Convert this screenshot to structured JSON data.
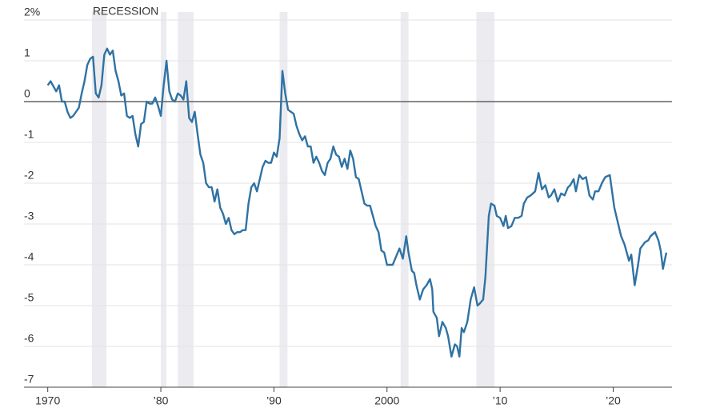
{
  "chart_data": {
    "type": "line",
    "recession_label": "RECESSION",
    "recessions": [
      [
        1973.9,
        1975.2
      ],
      [
        1980.0,
        1980.5
      ],
      [
        1981.5,
        1982.9
      ],
      [
        1990.5,
        1991.2
      ],
      [
        2001.2,
        2001.9
      ],
      [
        2007.9,
        2009.5
      ]
    ],
    "recession_color": "#ececf0",
    "xlim": [
      1967.9,
      2025.2
    ],
    "xticks": [
      {
        "value": 1970,
        "label": "1970"
      },
      {
        "value": 1980,
        "label": "’80"
      },
      {
        "value": 1990,
        "label": "’90"
      },
      {
        "value": 2000,
        "label": "2000"
      },
      {
        "value": 2010,
        "label": "’10"
      },
      {
        "value": 2020,
        "label": "’20"
      }
    ],
    "ylim": [
      -7,
      2
    ],
    "yticks": [
      {
        "value": 2,
        "label": "2%"
      },
      1,
      0,
      -1,
      -2,
      -3,
      -4,
      -5,
      -6,
      -7
    ],
    "grid": true,
    "series": [
      {
        "color": "#2f72a3",
        "x": [
          1970,
          1970.25,
          1970.75,
          1971,
          1971.25,
          1971.5,
          1971.75,
          1972,
          1972.25,
          1972.5,
          1972.75,
          1973,
          1973.25,
          1973.5,
          1973.75,
          1974,
          1974.25,
          1974.5,
          1974.75,
          1975,
          1975.25,
          1975.5,
          1975.75,
          1976,
          1976.25,
          1976.5,
          1976.75,
          1977,
          1977.25,
          1977.5,
          1977.75,
          1978,
          1978.25,
          1978.5,
          1978.75,
          1979,
          1979.25,
          1979.5,
          1979.75,
          1980,
          1980.25,
          1980.5,
          1980.75,
          1981,
          1981.25,
          1981.5,
          1981.75,
          1982,
          1982.25,
          1982.5,
          1982.75,
          1983,
          1983.25,
          1983.5,
          1983.75,
          1984,
          1984.25,
          1984.5,
          1984.75,
          1985,
          1985.25,
          1985.5,
          1985.75,
          1986,
          1986.25,
          1986.5,
          1986.75,
          1987,
          1987.25,
          1987.5,
          1987.75,
          1988,
          1988.25,
          1988.5,
          1988.75,
          1989,
          1989.25,
          1989.5,
          1989.75,
          1990,
          1990.25,
          1990.5,
          1990.75,
          1991,
          1991.25,
          1991.5,
          1991.75,
          1992,
          1992.25,
          1992.5,
          1992.75,
          1993,
          1993.25,
          1993.5,
          1993.75,
          1994,
          1994.25,
          1994.5,
          1994.75,
          1995,
          1995.25,
          1995.5,
          1995.75,
          1996,
          1996.25,
          1996.5,
          1996.75,
          1997,
          1997.25,
          1997.5,
          1997.75,
          1998,
          1998.25,
          1998.5,
          1998.75,
          1999,
          1999.25,
          1999.5,
          1999.75,
          2000,
          2000.25,
          2000.5,
          2001.1,
          2001.4,
          2001.7,
          2001.9,
          2002.2,
          2002.4,
          2002.6,
          2002.9,
          2003.2,
          2003.5,
          2003.8,
          2004.0,
          2004.1,
          2004.4,
          2004.6,
          2004.9,
          2005.2,
          2005.4,
          2005.7,
          2006.0,
          2006.2,
          2006.4,
          2006.6,
          2006.8,
          2007.1,
          2007.4,
          2007.7,
          2008.0,
          2008.2,
          2008.5,
          2008.7,
          2009.0,
          2009.2,
          2009.5,
          2009.7,
          2010.0,
          2010.3,
          2010.5,
          2010.7,
          2011.0,
          2011.3,
          2011.6,
          2011.9,
          2012.1,
          2012.4,
          2012.7,
          2013.1,
          2013.4,
          2013.7,
          2014.0,
          2014.3,
          2014.5,
          2014.8,
          2015.1,
          2015.4,
          2015.7,
          2016.0,
          2016.2,
          2016.5,
          2016.7,
          2017.0,
          2017.3,
          2017.6,
          2017.9,
          2018.2,
          2018.4,
          2018.7,
          2019.0,
          2019.3,
          2019.7,
          2020.1,
          2020.7,
          2021.0,
          2021.4,
          2021.6,
          2021.9,
          2022.2,
          2022.4,
          2022.8,
          2023.1,
          2023.3,
          2023.7,
          2024.0,
          2024.2,
          2024.4,
          2024.7
        ],
        "values": [
          0.4,
          0.5,
          0.25,
          0.4,
          0.0,
          0.0,
          -0.25,
          -0.4,
          -0.35,
          -0.25,
          -0.15,
          0.2,
          0.5,
          0.9,
          1.05,
          1.1,
          0.2,
          0.1,
          0.4,
          1.15,
          1.3,
          1.15,
          1.25,
          0.75,
          0.5,
          0.15,
          0.2,
          -0.35,
          -0.4,
          -0.35,
          -0.8,
          -1.1,
          -0.55,
          -0.5,
          0.0,
          -0.05,
          -0.05,
          0.1,
          -0.1,
          -0.35,
          0.4,
          1.0,
          0.25,
          0.05,
          0.0,
          0.2,
          0.15,
          0.05,
          0.5,
          -0.4,
          -0.5,
          -0.25,
          -0.8,
          -1.3,
          -1.5,
          -2.0,
          -2.1,
          -2.1,
          -2.45,
          -2.15,
          -2.6,
          -2.75,
          -3.0,
          -2.85,
          -3.15,
          -3.25,
          -3.2,
          -3.2,
          -3.15,
          -3.15,
          -2.5,
          -2.1,
          -2.0,
          -2.2,
          -1.9,
          -1.6,
          -1.45,
          -1.5,
          -1.5,
          -1.25,
          -1.35,
          -0.9,
          0.75,
          0.2,
          -0.2,
          -0.25,
          -0.3,
          -0.6,
          -0.8,
          -0.95,
          -0.85,
          -1.1,
          -1.1,
          -1.5,
          -1.35,
          -1.5,
          -1.7,
          -1.8,
          -1.5,
          -1.4,
          -1.1,
          -1.3,
          -1.35,
          -1.6,
          -1.4,
          -1.65,
          -1.2,
          -1.4,
          -1.85,
          -1.9,
          -2.2,
          -2.5,
          -2.55,
          -2.55,
          -2.8,
          -3.05,
          -3.2,
          -3.65,
          -3.7,
          -4.0,
          -4.0,
          -4.0,
          -3.6,
          -3.85,
          -3.3,
          -3.7,
          -4.15,
          -4.2,
          -4.5,
          -4.85,
          -4.6,
          -4.5,
          -4.35,
          -4.6,
          -5.15,
          -5.3,
          -5.75,
          -5.4,
          -5.55,
          -5.75,
          -6.25,
          -5.95,
          -6.0,
          -6.25,
          -5.55,
          -5.65,
          -5.4,
          -4.85,
          -4.55,
          -5.0,
          -4.95,
          -4.85,
          -4.3,
          -2.8,
          -2.5,
          -2.55,
          -2.8,
          -2.85,
          -3.05,
          -2.8,
          -3.1,
          -3.05,
          -2.85,
          -2.85,
          -2.8,
          -2.5,
          -2.35,
          -2.3,
          -2.2,
          -1.75,
          -2.15,
          -2.05,
          -2.35,
          -2.3,
          -2.15,
          -2.45,
          -2.25,
          -2.3,
          -2.1,
          -2.05,
          -1.9,
          -2.2,
          -1.8,
          -1.9,
          -1.85,
          -2.3,
          -2.4,
          -2.2,
          -2.2,
          -2.0,
          -1.85,
          -1.8,
          -2.6,
          -3.3,
          -3.5,
          -3.9,
          -3.75,
          -4.5,
          -4.0,
          -3.6,
          -3.45,
          -3.4,
          -3.3,
          -3.2,
          -3.4,
          -3.65,
          -4.1,
          -3.7
        ]
      }
    ]
  }
}
